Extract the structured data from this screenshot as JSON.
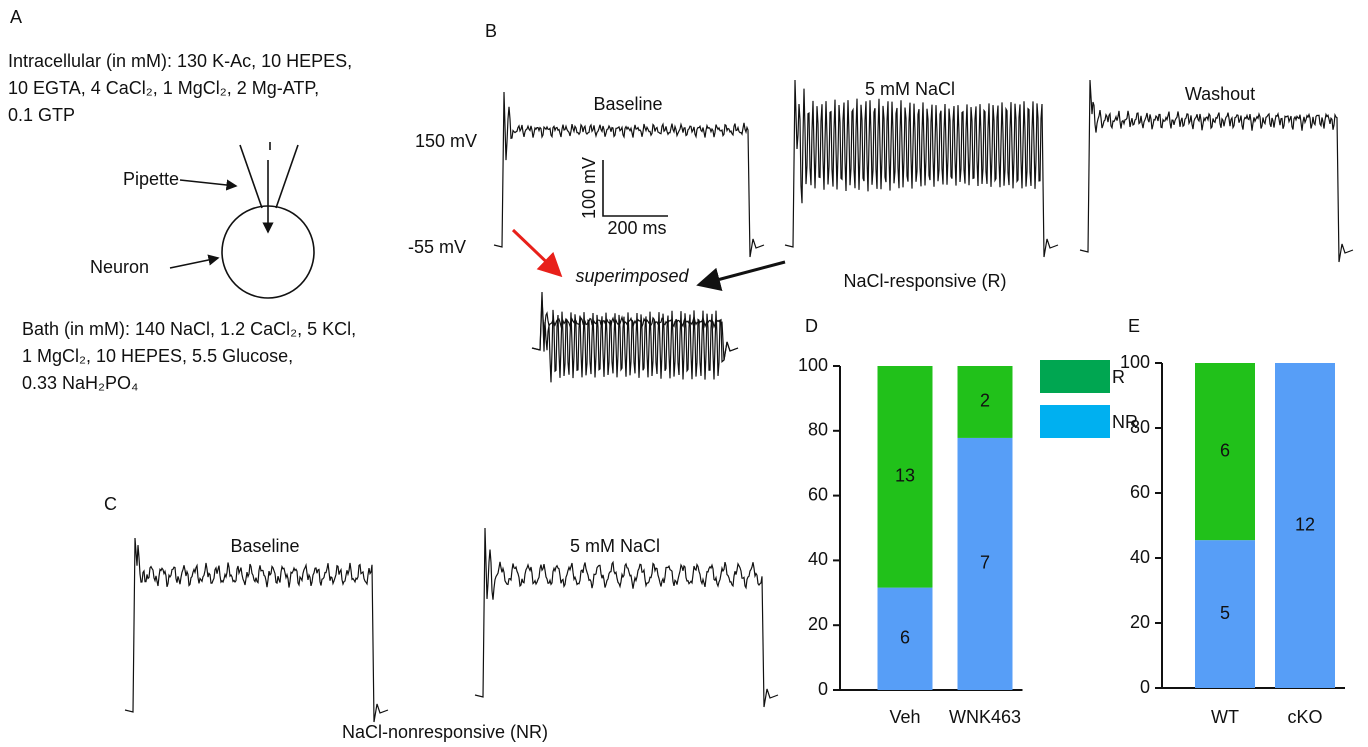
{
  "panel_a": {
    "label": "A",
    "intracellular": [
      "Intracellular (in mM): 130 K-Ac, 10 HEPES,",
      "10 EGTA, 4 CaCl₂, 1 MgCl₂, 2 Mg-ATP,",
      "0.1 GTP"
    ],
    "pipette": "Pipette",
    "neuron": "Neuron",
    "bath": [
      "Bath (in mM): 140 NaCl, 1.2 CaCl₂, 5 KCl,",
      "1 MgCl₂, 10 HEPES, 5.5 Glucose,",
      "0.33 NaH₂PO₄"
    ]
  },
  "panel_b": {
    "label": "B",
    "trace_titles": [
      "Baseline",
      "5 mM NaCl",
      "Washout"
    ],
    "y_label_top": "150 mV",
    "y_label_bottom": "-55 mV",
    "scale_v": "100 mV",
    "scale_t": "200 ms",
    "superimposed": "superimposed",
    "caption": "NaCl-responsive (R)"
  },
  "panel_c": {
    "label": "C",
    "trace_titles": [
      "Baseline",
      "5 mM NaCl"
    ],
    "caption": "NaCl-nonresponsive (NR)"
  },
  "chart_data": [
    {
      "type": "bar",
      "stacked": true,
      "panel_label": "D",
      "categories": [
        "Veh",
        "WNK463"
      ],
      "series": [
        {
          "name": "NR",
          "color": "#579ef7",
          "legend_color": "#00b0f0",
          "values": [
            31.6,
            77.8
          ],
          "counts": [
            6,
            7
          ]
        },
        {
          "name": "R",
          "color": "#21c11a",
          "legend_color": "#00a651",
          "values": [
            68.4,
            22.2
          ],
          "counts": [
            13,
            2
          ]
        }
      ],
      "ylim": [
        0,
        100
      ],
      "yticks": [
        0,
        20,
        40,
        60,
        80,
        100
      ],
      "legend": "right"
    },
    {
      "type": "bar",
      "stacked": true,
      "panel_label": "E",
      "categories": [
        "WT",
        "cKO"
      ],
      "series": [
        {
          "color": "#579ef7",
          "values": [
            45.5,
            100
          ],
          "counts": [
            5,
            12
          ]
        },
        {
          "color": "#21c11a",
          "values": [
            54.5,
            0
          ],
          "counts": [
            6,
            null
          ]
        }
      ],
      "ylim": [
        0,
        100
      ],
      "yticks": [
        0,
        20,
        40,
        60,
        80,
        100
      ]
    }
  ]
}
